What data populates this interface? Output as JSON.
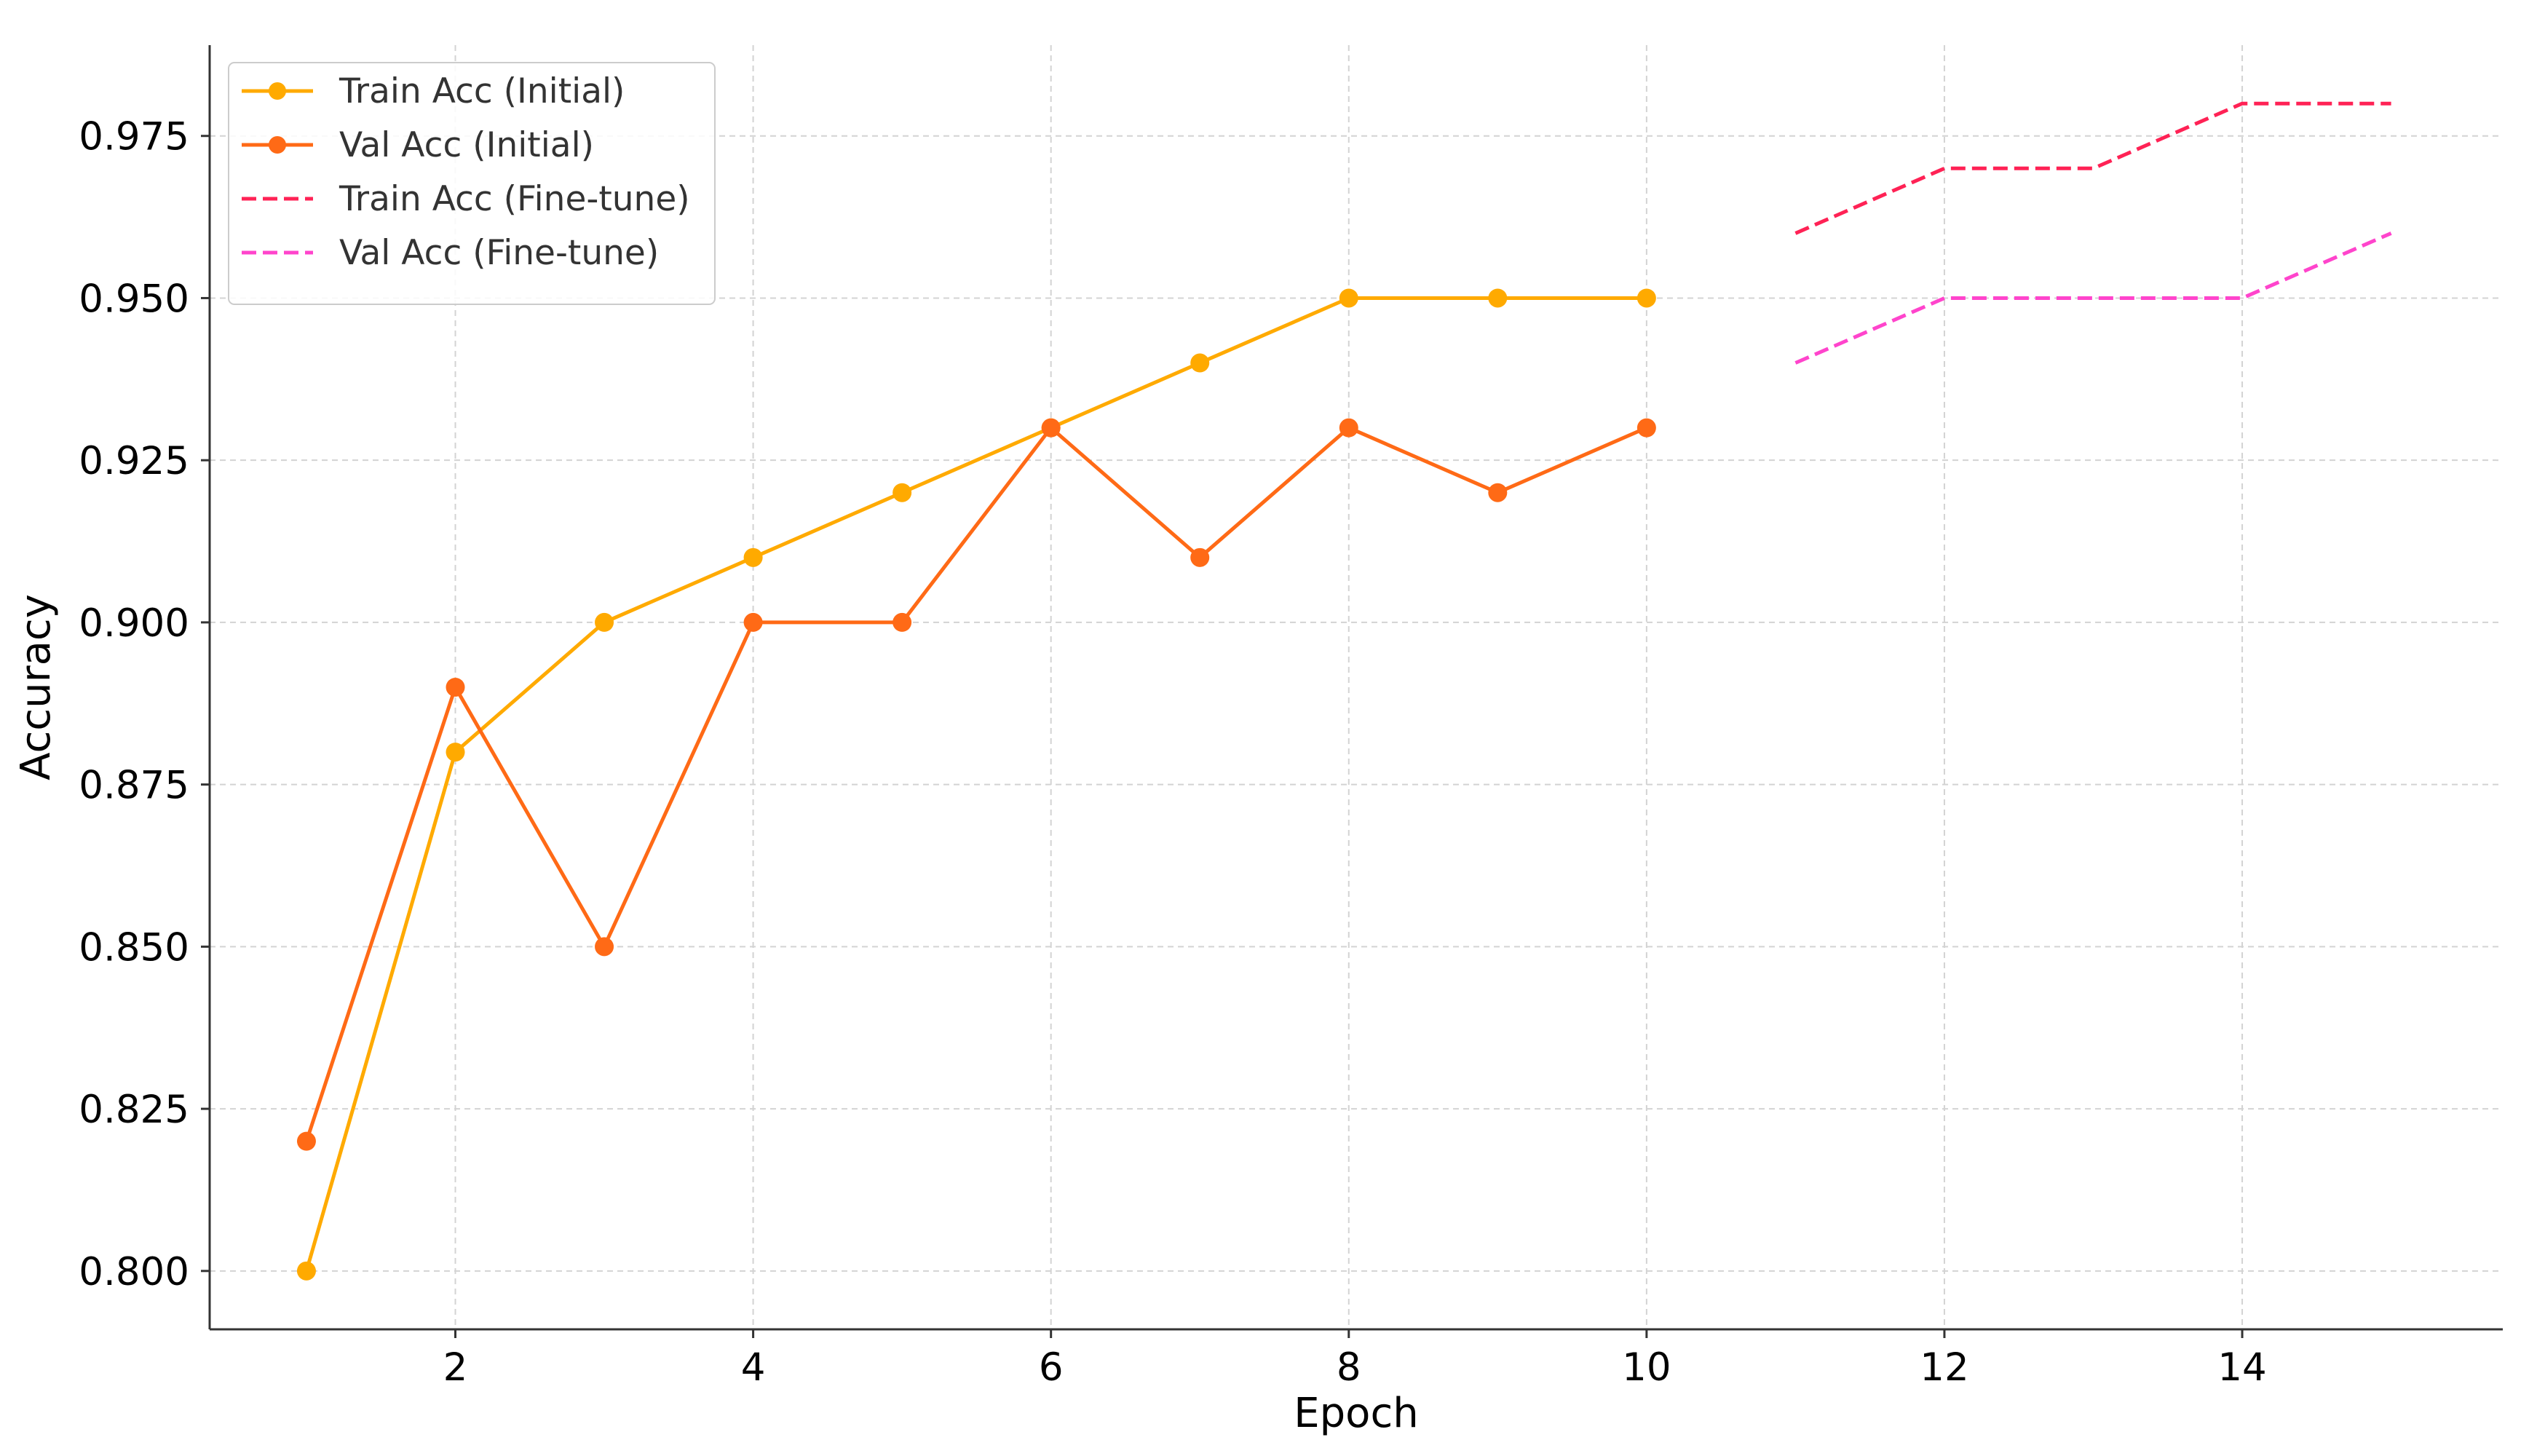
{
  "chart_data": {
    "type": "line",
    "title": "",
    "xlabel": "Epoch",
    "ylabel": "Accuracy",
    "xlim": [
      0.35,
      15.75
    ],
    "ylim": [
      0.791,
      0.989
    ],
    "xticks": [
      2,
      4,
      6,
      8,
      10,
      12,
      14
    ],
    "xtick_labels": [
      "2",
      "4",
      "6",
      "8",
      "10",
      "12",
      "14"
    ],
    "yticks": [
      0.8,
      0.825,
      0.85,
      0.875,
      0.9,
      0.925,
      0.95,
      0.975
    ],
    "ytick_labels": [
      "0.800",
      "0.825",
      "0.850",
      "0.875",
      "0.900",
      "0.925",
      "0.950",
      "0.975"
    ],
    "grid": true,
    "legend_position": "top-left",
    "series": [
      {
        "name": "Train Acc (Initial)",
        "color": "#FFAA00",
        "style": "solid",
        "marker": "circle",
        "x": [
          1,
          2,
          3,
          4,
          5,
          6,
          7,
          8,
          9,
          10
        ],
        "y": [
          0.8,
          0.88,
          0.9,
          0.91,
          0.92,
          0.93,
          0.94,
          0.95,
          0.95,
          0.95
        ]
      },
      {
        "name": "Val Acc (Initial)",
        "color": "#FF6A16",
        "style": "solid",
        "marker": "circle",
        "x": [
          1,
          2,
          3,
          4,
          5,
          6,
          7,
          8,
          9,
          10
        ],
        "y": [
          0.82,
          0.89,
          0.85,
          0.9,
          0.9,
          0.93,
          0.91,
          0.93,
          0.92,
          0.93
        ]
      },
      {
        "name": "Train Acc (Fine-tune)",
        "color": "#FF2255",
        "style": "dashed",
        "marker": "none",
        "x": [
          11,
          12,
          13,
          14,
          15
        ],
        "y": [
          0.96,
          0.97,
          0.97,
          0.98,
          0.98
        ]
      },
      {
        "name": "Val Acc (Fine-tune)",
        "color": "#FF44CC",
        "style": "dashed",
        "marker": "none",
        "x": [
          11,
          12,
          13,
          14,
          15
        ],
        "y": [
          0.94,
          0.95,
          0.95,
          0.95,
          0.96
        ]
      }
    ]
  }
}
